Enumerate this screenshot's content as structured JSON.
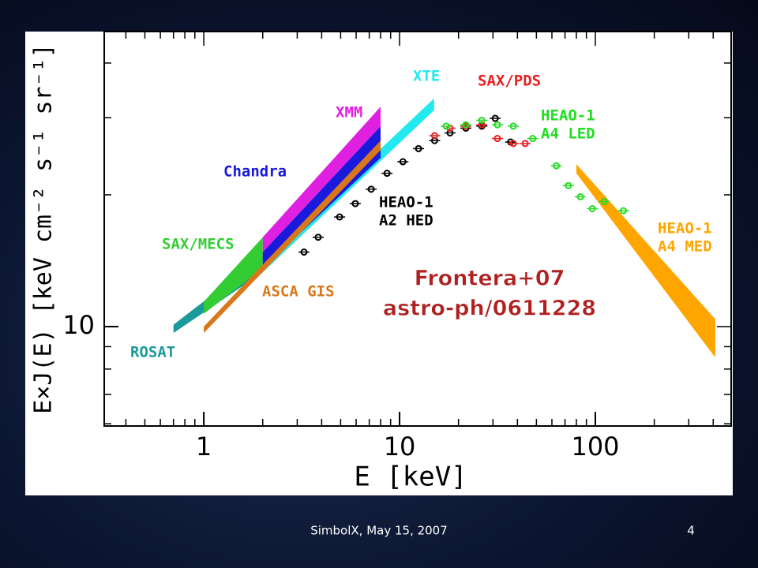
{
  "chart_data": {
    "type": "spectrum",
    "xlabel": "E [keV]",
    "ylabel": "E×J(E) [keV cm⁻² s⁻¹ sr⁻¹]",
    "xlog": true,
    "ylog": true,
    "xlim": [
      0.31,
      494
    ],
    "ylim": [
      5.93,
      47.2
    ],
    "xticks": [
      1,
      10,
      100
    ],
    "yticks": [
      10
    ],
    "annotation": [
      "Frontera+07",
      "astro-ph/0611228"
    ],
    "bands": [
      {
        "name": "ROSAT",
        "color": "#1a9a9a",
        "x": [
          0.7,
          2
        ],
        "y_low": [
          9.67,
          13.3
        ],
        "y_high": [
          10.1,
          14.5
        ]
      },
      {
        "name": "SAX/MECS",
        "color": "#33cc33",
        "x": [
          1,
          2
        ],
        "y_low": [
          10.7,
          13.6
        ],
        "y_high": [
          11.4,
          16.0
        ]
      },
      {
        "name": "XTE",
        "color": "#22e8f0",
        "x": [
          2,
          15
        ],
        "y_low": [
          13.3,
          31.2
        ],
        "y_high": [
          14.2,
          33.2
        ]
      },
      {
        "name": "Chandra",
        "color": "#1a1adc",
        "x": [
          2,
          8
        ],
        "y_low": [
          13.6,
          24.3
        ],
        "y_high": [
          14.8,
          28.7
        ]
      },
      {
        "name": "XMM",
        "color": "#e020e0",
        "x": [
          2,
          8
        ],
        "y_low": [
          14.8,
          28.7
        ],
        "y_high": [
          16.0,
          31.8
        ]
      },
      {
        "name": "ASCA GIS",
        "color": "#d9781a",
        "x": [
          1,
          8
        ],
        "y_low": [
          9.67,
          25.3
        ],
        "y_high": [
          10.0,
          26.6
        ]
      },
      {
        "name": [
          "HEAO-1",
          "A4 MED"
        ],
        "color": "#ffa500",
        "x": [
          80,
          410
        ],
        "y_low": [
          22.4,
          8.5
        ],
        "y_high": [
          23.5,
          10.4
        ]
      }
    ],
    "series": [
      {
        "name": [
          "HEAO-1",
          "A2 HED"
        ],
        "color": "#000000",
        "x": [
          3.25,
          3.84,
          4.94,
          5.94,
          7.16,
          8.63,
          10.4,
          12.5,
          15.1,
          18.1,
          21.8,
          26.3,
          30.8,
          36.9
        ],
        "values": [
          14.8,
          16.0,
          17.8,
          19.1,
          20.6,
          22.4,
          23.8,
          25.5,
          26.6,
          27.7,
          28.4,
          28.7,
          29.9,
          26.4
        ]
      },
      {
        "name": "SAX/PDS",
        "color": "#e82020",
        "x": [
          15.1,
          18.1,
          21.8,
          26.3,
          31.6,
          38.1,
          43.8
        ],
        "values": [
          27.3,
          28.4,
          28.7,
          28.9,
          26.9,
          26.2,
          26.2
        ]
      },
      {
        "name": [
          "HEAO-1",
          "A4 LED"
        ],
        "color": "#22dd22",
        "x": [
          17.3,
          21.8,
          26.3,
          31.6,
          38.1,
          47.9,
          63.2,
          72.8,
          83.9,
          96.6,
          111,
          139
        ],
        "values": [
          28.7,
          28.9,
          29.6,
          28.9,
          28.7,
          26.9,
          23.3,
          21.0,
          19.8,
          18.6,
          19.3,
          18.4
        ]
      }
    ]
  },
  "footer": {
    "text": "SimbolX, May 15, 2007",
    "page": "4"
  }
}
